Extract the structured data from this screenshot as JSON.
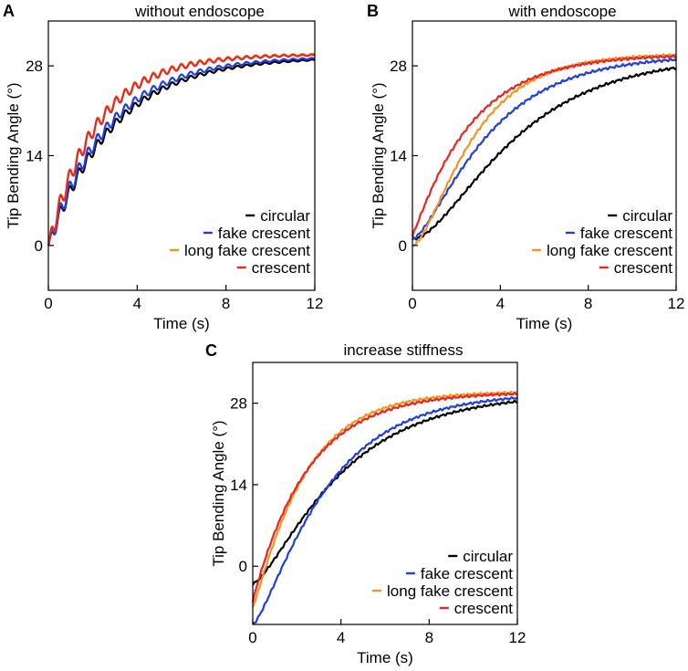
{
  "figure": {
    "panels": [
      {
        "letter": "A",
        "title": "without endoscope"
      },
      {
        "letter": "B",
        "title": "with endoscope"
      },
      {
        "letter": "C",
        "title": "increase stiffness"
      }
    ]
  },
  "chart_data": [
    {
      "type": "line",
      "panel": "A",
      "title": "without endoscope",
      "xlabel": "Time (s)",
      "ylabel": "Tip Bending Angle (°)",
      "xlim": [
        0,
        12
      ],
      "ylim": [
        -7,
        35
      ],
      "xticks": [
        0,
        4,
        8,
        12
      ],
      "yticks": [
        0,
        14,
        28
      ],
      "grid": false,
      "legend_position": "bottom-right",
      "series": [
        {
          "name": "circular",
          "color": "#000000",
          "tau": 2.9,
          "plateau": 29.4,
          "start": 0,
          "osc": 1.2,
          "period": 0.42
        },
        {
          "name": "fake crescent",
          "color": "#1f3fe0",
          "tau": 2.7,
          "plateau": 29.5,
          "start": 0,
          "osc": 1.4,
          "period": 0.42
        },
        {
          "name": "long fake crescent",
          "color": "#f7941d",
          "tau": 2.2,
          "plateau": 29.9,
          "start": 0,
          "osc": 1.6,
          "period": 0.42
        },
        {
          "name": "crescent",
          "color": "#e8251f",
          "tau": 2.2,
          "plateau": 29.8,
          "start": 0,
          "osc": 1.5,
          "period": 0.42
        }
      ]
    },
    {
      "type": "line",
      "panel": "B",
      "title": "with endoscope",
      "xlabel": "Time (s)",
      "ylabel": "Tip Bending Angle (°)",
      "xlim": [
        0,
        12
      ],
      "ylim": [
        -7,
        35
      ],
      "xticks": [
        0,
        4,
        8,
        12
      ],
      "yticks": [
        0,
        14,
        28
      ],
      "grid": false,
      "legend_position": "bottom-right",
      "series": [
        {
          "name": "circular",
          "color": "#000000",
          "tau": 3.6,
          "plateau": 29.6,
          "start": 1,
          "lag": 0.55
        },
        {
          "name": "fake crescent",
          "color": "#1f3fe0",
          "tau": 2.9,
          "plateau": 29.7,
          "start": 1,
          "lag": 0.35
        },
        {
          "name": "long fake crescent",
          "color": "#f7941d",
          "tau": 2.2,
          "plateau": 29.9,
          "start": 0,
          "lag": 0.45
        },
        {
          "name": "crescent",
          "color": "#e8251f",
          "tau": 2.6,
          "plateau": 29.8,
          "start": 1.5,
          "lag": 0.05
        }
      ]
    },
    {
      "type": "line",
      "panel": "C",
      "title": "increase stiffness",
      "xlabel": "Time (s)",
      "ylabel": "Tip Bending Angle (°)",
      "xlim": [
        0,
        12
      ],
      "ylim": [
        -10,
        35
      ],
      "xticks": [
        0,
        4,
        8,
        12
      ],
      "yticks": [
        0,
        14,
        28
      ],
      "grid": false,
      "legend_position": "bottom-right",
      "series": [
        {
          "name": "circular",
          "color": "#000000",
          "tau": 3.4,
          "plateau": 29.7,
          "start": -3,
          "lag": 0.3
        },
        {
          "name": "fake crescent",
          "color": "#1f3fe0",
          "tau": 2.9,
          "plateau": 29.8,
          "start": -10,
          "lag": 0.25
        },
        {
          "name": "long fake crescent",
          "color": "#f7941d",
          "tau": 2.2,
          "plateau": 30.0,
          "start": -7,
          "lag": 0.1
        },
        {
          "name": "crescent",
          "color": "#e8251f",
          "tau": 2.5,
          "plateau": 29.9,
          "start": -6,
          "lag": 0.0
        }
      ]
    }
  ]
}
